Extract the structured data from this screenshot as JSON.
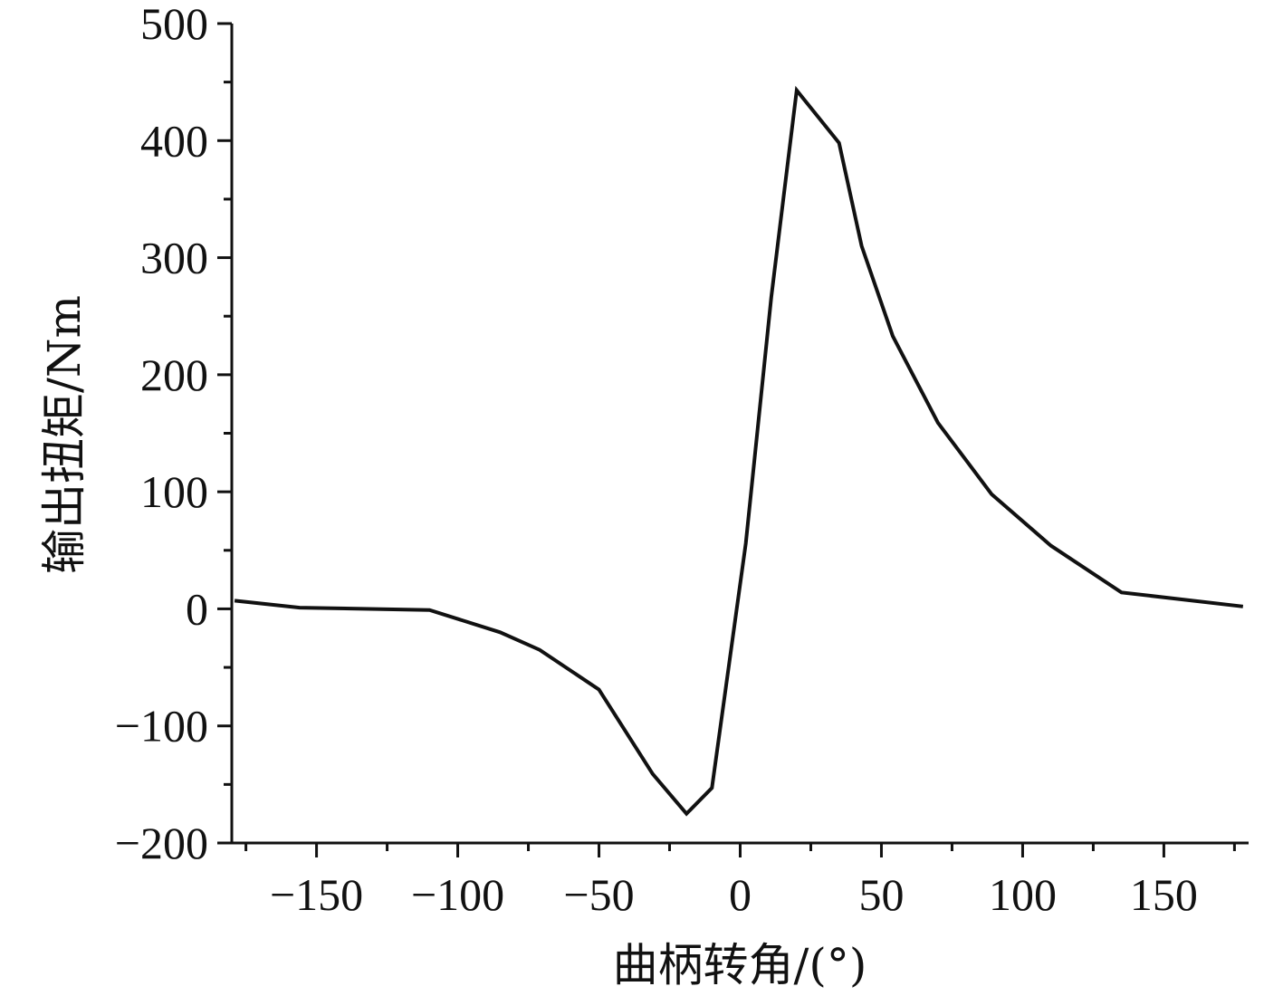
{
  "chart_data": {
    "type": "line",
    "xlabel": "曲柄转角/(°)",
    "ylabel": "输出扭矩/Nm",
    "xlim": [
      -180,
      180
    ],
    "ylim": [
      -200,
      500
    ],
    "x_ticks": [
      -150,
      -100,
      -50,
      0,
      50,
      100,
      150
    ],
    "y_ticks": [
      -200,
      -100,
      0,
      100,
      200,
      300,
      400,
      500
    ],
    "x_tick_labels": [
      "−150",
      "−100",
      "−50",
      "0",
      "50",
      "100",
      "150"
    ],
    "y_tick_labels": [
      "−200",
      "−100",
      "0",
      "100",
      "200",
      "300",
      "400",
      "500"
    ],
    "grid": false,
    "legend": "none",
    "series": [
      {
        "color": "#111111",
        "x": [
          -179,
          -156,
          -110,
          -85,
          -71,
          -50,
          -31,
          -19,
          -10,
          2,
          11,
          20,
          35,
          43,
          54,
          70,
          89,
          110,
          135,
          178
        ],
        "y": [
          7,
          1,
          -1,
          -20,
          -35,
          -69,
          -141,
          -175,
          -153,
          56,
          266,
          443,
          398,
          310,
          233,
          159,
          98,
          54,
          14,
          2
        ]
      }
    ]
  }
}
